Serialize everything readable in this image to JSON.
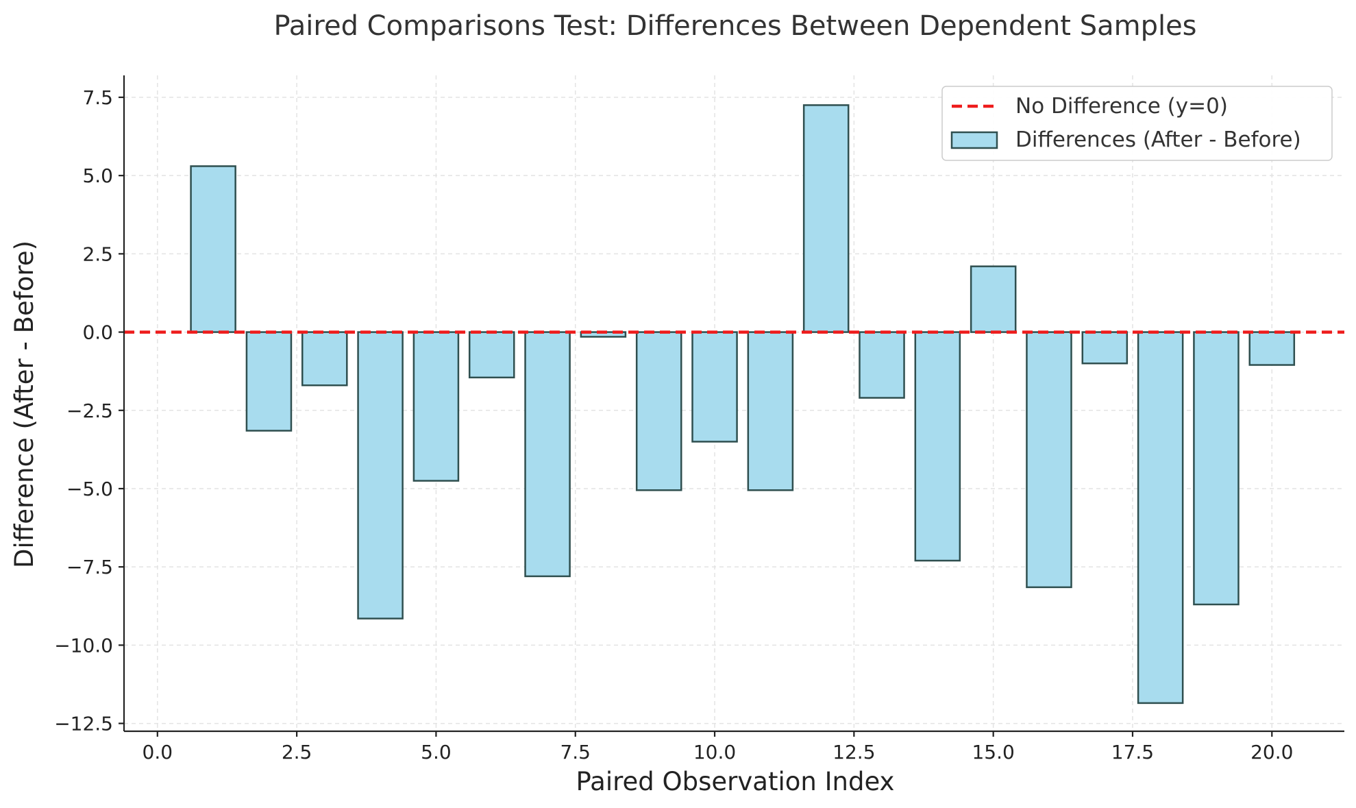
{
  "chart_data": {
    "type": "bar",
    "title": "Paired Comparisons Test: Differences Between Dependent Samples",
    "xlabel": "Paired Observation Index",
    "ylabel": "Difference (After - Before)",
    "xlim": [
      -0.6,
      21.3
    ],
    "ylim": [
      -12.75,
      8.2
    ],
    "xticks": [
      0,
      2.5,
      5,
      7.5,
      10,
      12.5,
      15,
      17.5,
      20
    ],
    "xtick_labels": [
      "0.0",
      "2.5",
      "5.0",
      "7.5",
      "10.0",
      "12.5",
      "15.0",
      "17.5",
      "20.0"
    ],
    "yticks": [
      7.5,
      5,
      2.5,
      0,
      -2.5,
      -5,
      -7.5,
      -10,
      -12.5
    ],
    "ytick_labels": [
      "7.5",
      "5.0",
      "2.5",
      "0.0",
      "−2.5",
      "−5.0",
      "−7.5",
      "−10.0",
      "−12.5"
    ],
    "grid": true,
    "bar_width": 0.8,
    "x": [
      1,
      2,
      3,
      4,
      5,
      6,
      7,
      8,
      9,
      10,
      11,
      12,
      13,
      14,
      15,
      16,
      17,
      18,
      19,
      20
    ],
    "values": [
      5.3,
      -3.15,
      -1.7,
      -9.15,
      -4.75,
      -1.45,
      -7.8,
      -0.15,
      -5.05,
      -3.5,
      -5.05,
      7.25,
      -2.1,
      -7.3,
      2.1,
      -8.15,
      -1.0,
      -11.85,
      -8.7,
      -1.05
    ],
    "reference_line": {
      "y": 0,
      "label": "No Difference (y=0)",
      "color": "#ee1c1c",
      "style": "dashed"
    },
    "series": [
      {
        "name": "Differences (After - Before)",
        "color": "#a8dcee",
        "edge_color": "#2f4f4f"
      }
    ],
    "legend": {
      "position": "upper-right",
      "entries": [
        "No Difference (y=0)",
        "Differences (After - Before)"
      ]
    }
  }
}
